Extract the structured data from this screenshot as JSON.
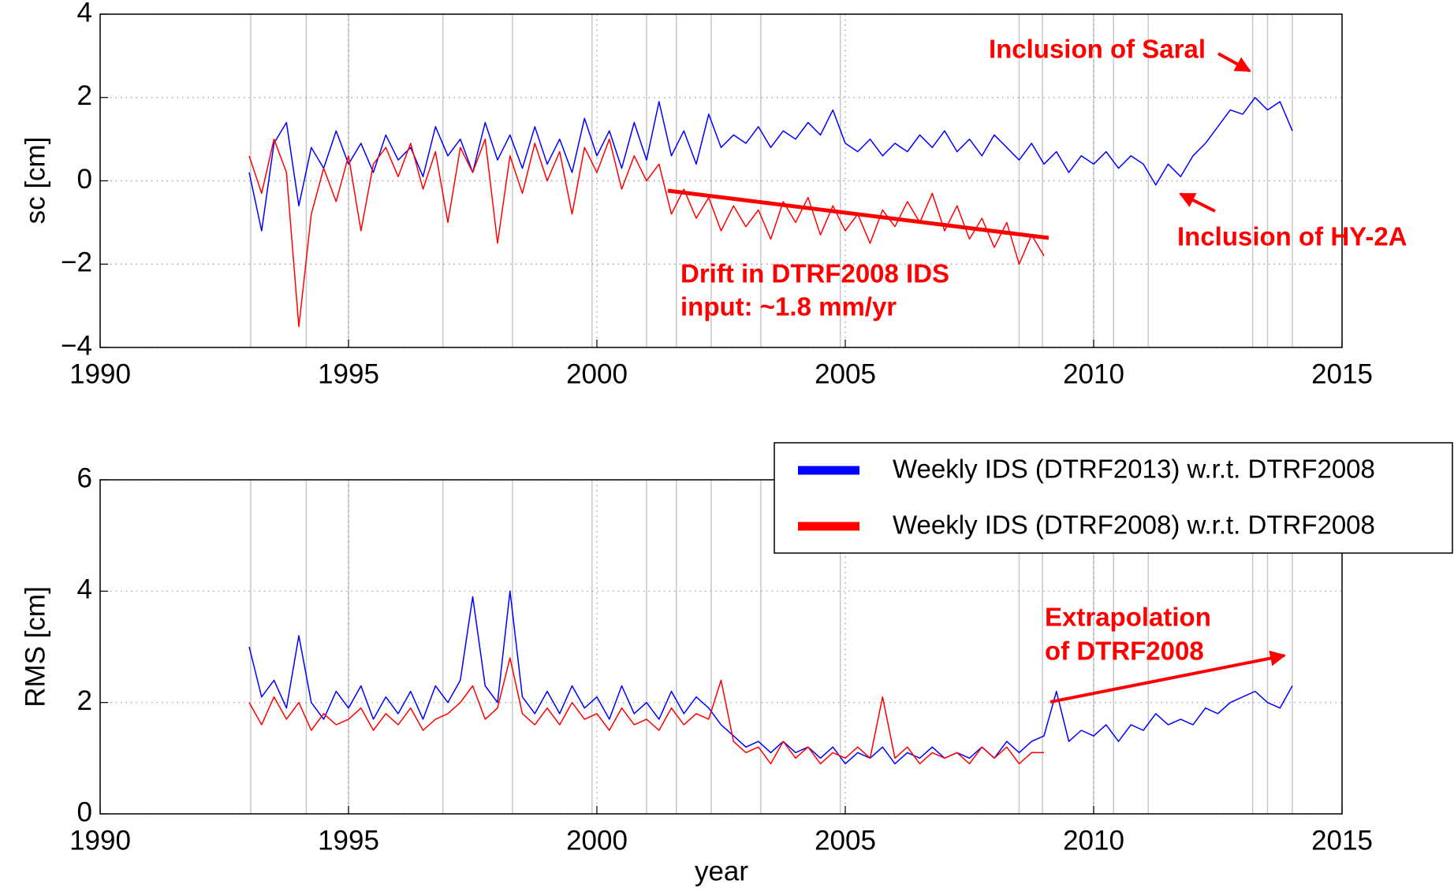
{
  "chart_data": [
    {
      "type": "line",
      "ylabel": "sc [cm]",
      "xlim": [
        1990,
        2015
      ],
      "xticks": [
        1990,
        1995,
        2000,
        2005,
        2010,
        2015
      ],
      "ylim": [
        -4,
        4
      ],
      "yticks": [
        {
          "value": -4,
          "label": "−4"
        },
        {
          "value": -2,
          "label": "−2"
        },
        0,
        2,
        4
      ],
      "grid": true,
      "event_lines": [
        1993.03,
        1994.15,
        1995.0,
        1996.9,
        1998.3,
        1999.9,
        2001.0,
        2001.6,
        2002.3,
        2003.3,
        2004.9,
        2008.5,
        2008.97,
        2010.0,
        2010.4,
        2011.1,
        2013.2,
        2013.5,
        2014.0
      ],
      "annotations": [
        "Inclusion of Saral",
        "Inclusion of HY-2A",
        "Drift in DTRF2008 IDS",
        "input: ~1.8 mm/yr"
      ],
      "x": [
        1993.0,
        1993.25,
        1993.5,
        1993.75,
        1994.0,
        1994.25,
        1994.5,
        1994.75,
        1995.0,
        1995.25,
        1995.5,
        1995.75,
        1996.0,
        1996.25,
        1996.5,
        1996.75,
        1997.0,
        1997.25,
        1997.5,
        1997.75,
        1998.0,
        1998.25,
        1998.5,
        1998.75,
        1999.0,
        1999.25,
        1999.5,
        1999.75,
        2000.0,
        2000.25,
        2000.5,
        2000.75,
        2001.0,
        2001.25,
        2001.5,
        2001.75,
        2002.0,
        2002.25,
        2002.5,
        2002.75,
        2003.0,
        2003.25,
        2003.5,
        2003.75,
        2004.0,
        2004.25,
        2004.5,
        2004.75,
        2005.0,
        2005.25,
        2005.5,
        2005.75,
        2006.0,
        2006.25,
        2006.5,
        2006.75,
        2007.0,
        2007.25,
        2007.5,
        2007.75,
        2008.0,
        2008.25,
        2008.5,
        2008.75,
        2009.0,
        2009.25,
        2009.5,
        2009.75,
        2010.0,
        2010.25,
        2010.5,
        2010.75,
        2011.0,
        2011.25,
        2011.5,
        2011.75,
        2012.0,
        2012.25,
        2012.5,
        2012.75,
        2013.0,
        2013.25,
        2013.5,
        2013.75,
        2014.0
      ],
      "series": [
        {
          "color": "#0000ff",
          "values": [
            0.2,
            -1.2,
            0.9,
            1.4,
            -0.6,
            0.8,
            0.3,
            1.2,
            0.4,
            0.9,
            0.2,
            1.1,
            0.5,
            0.8,
            0.1,
            1.3,
            0.6,
            1.0,
            0.2,
            1.4,
            0.5,
            1.1,
            0.3,
            1.3,
            0.4,
            1.0,
            0.2,
            1.5,
            0.6,
            1.2,
            0.3,
            1.4,
            0.5,
            1.9,
            0.6,
            1.2,
            0.4,
            1.6,
            0.8,
            1.1,
            0.9,
            1.3,
            0.8,
            1.2,
            1.0,
            1.4,
            1.1,
            1.7,
            0.9,
            0.7,
            1.0,
            0.6,
            0.9,
            0.7,
            1.1,
            0.8,
            1.2,
            0.7,
            1.0,
            0.6,
            1.1,
            0.8,
            0.5,
            0.9,
            0.4,
            0.7,
            0.2,
            0.6,
            0.4,
            0.7,
            0.3,
            0.6,
            0.4,
            -0.1,
            0.4,
            0.1,
            0.6,
            0.9,
            1.3,
            1.7,
            1.6,
            2.0,
            1.7,
            1.9,
            1.2
          ]
        },
        {
          "color": "#ff0000",
          "values": [
            0.6,
            -0.3,
            1.0,
            0.2,
            -3.5,
            -0.8,
            0.3,
            -0.5,
            0.6,
            -1.2,
            0.4,
            0.8,
            0.1,
            0.9,
            -0.2,
            0.7,
            -1.0,
            0.8,
            0.2,
            1.0,
            -1.5,
            0.6,
            -0.3,
            0.9,
            0.0,
            0.7,
            -0.8,
            0.8,
            0.2,
            1.0,
            -0.2,
            0.6,
            0.0,
            0.4,
            -0.8,
            -0.2,
            -0.9,
            -0.4,
            -1.2,
            -0.6,
            -1.1,
            -0.7,
            -1.4,
            -0.5,
            -1.0,
            -0.4,
            -1.3,
            -0.6,
            -1.2,
            -0.8,
            -1.5,
            -0.7,
            -1.1,
            -0.5,
            -1.0,
            -0.3,
            -1.2,
            -0.6,
            -1.4,
            -0.9,
            -1.6,
            -1.0,
            -2.0,
            -1.3,
            -1.8,
            null,
            null,
            null,
            null,
            null,
            null,
            null,
            null,
            null,
            null,
            null,
            null,
            null,
            null,
            null,
            null,
            null,
            null,
            null,
            null
          ]
        }
      ]
    },
    {
      "type": "line",
      "xlabel": "year",
      "ylabel": "RMS [cm]",
      "xlim": [
        1990,
        2015
      ],
      "xticks": [
        1990,
        1995,
        2000,
        2005,
        2010,
        2015
      ],
      "ylim": [
        0,
        6
      ],
      "yticks": [
        0,
        2,
        4,
        6
      ],
      "grid": true,
      "legend": "upper right",
      "annotations": [
        "Extrapolation",
        "of DTRF2008"
      ],
      "x": [
        1993.0,
        1993.25,
        1993.5,
        1993.75,
        1994.0,
        1994.25,
        1994.5,
        1994.75,
        1995.0,
        1995.25,
        1995.5,
        1995.75,
        1996.0,
        1996.25,
        1996.5,
        1996.75,
        1997.0,
        1997.25,
        1997.5,
        1997.75,
        1998.0,
        1998.25,
        1998.5,
        1998.75,
        1999.0,
        1999.25,
        1999.5,
        1999.75,
        2000.0,
        2000.25,
        2000.5,
        2000.75,
        2001.0,
        2001.25,
        2001.5,
        2001.75,
        2002.0,
        2002.25,
        2002.5,
        2002.75,
        2003.0,
        2003.25,
        2003.5,
        2003.75,
        2004.0,
        2004.25,
        2004.5,
        2004.75,
        2005.0,
        2005.25,
        2005.5,
        2005.75,
        2006.0,
        2006.25,
        2006.5,
        2006.75,
        2007.0,
        2007.25,
        2007.5,
        2007.75,
        2008.0,
        2008.25,
        2008.5,
        2008.75,
        2009.0,
        2009.25,
        2009.5,
        2009.75,
        2010.0,
        2010.25,
        2010.5,
        2010.75,
        2011.0,
        2011.25,
        2011.5,
        2011.75,
        2012.0,
        2012.25,
        2012.5,
        2012.75,
        2013.0,
        2013.25,
        2013.5,
        2013.75,
        2014.0
      ],
      "series": [
        {
          "name": "Weekly IDS (DTRF2013) w.r.t. DTRF2008",
          "color": "#0000ff",
          "values": [
            3.0,
            2.1,
            2.4,
            1.9,
            3.2,
            2.0,
            1.7,
            2.2,
            1.9,
            2.3,
            1.7,
            2.1,
            1.8,
            2.2,
            1.7,
            2.3,
            2.0,
            2.4,
            3.9,
            2.3,
            2.0,
            4.0,
            2.1,
            1.8,
            2.2,
            1.8,
            2.3,
            1.9,
            2.1,
            1.7,
            2.3,
            1.8,
            2.0,
            1.7,
            2.2,
            1.8,
            2.1,
            1.9,
            1.6,
            1.4,
            1.2,
            1.3,
            1.1,
            1.3,
            1.1,
            1.2,
            1.0,
            1.2,
            0.9,
            1.1,
            1.0,
            1.2,
            0.9,
            1.1,
            1.0,
            1.2,
            1.0,
            1.1,
            1.0,
            1.2,
            1.0,
            1.3,
            1.1,
            1.3,
            1.4,
            2.2,
            1.3,
            1.5,
            1.4,
            1.6,
            1.3,
            1.6,
            1.5,
            1.8,
            1.6,
            1.7,
            1.6,
            1.9,
            1.8,
            2.0,
            2.1,
            2.2,
            2.0,
            1.9,
            2.3
          ]
        },
        {
          "name": "Weekly IDS (DTRF2008) w.r.t. DTRF2008",
          "color": "#ff0000",
          "values": [
            2.0,
            1.6,
            2.1,
            1.7,
            2.0,
            1.5,
            1.8,
            1.6,
            1.7,
            1.9,
            1.5,
            1.8,
            1.6,
            1.9,
            1.5,
            1.7,
            1.8,
            2.0,
            2.3,
            1.7,
            1.9,
            2.8,
            1.8,
            1.6,
            1.9,
            1.6,
            2.0,
            1.7,
            1.8,
            1.5,
            1.9,
            1.6,
            1.7,
            1.5,
            1.9,
            1.6,
            1.8,
            1.7,
            2.4,
            1.3,
            1.1,
            1.2,
            0.9,
            1.3,
            1.0,
            1.2,
            0.9,
            1.1,
            1.0,
            1.2,
            1.0,
            2.1,
            1.0,
            1.2,
            0.9,
            1.1,
            1.0,
            1.1,
            0.9,
            1.2,
            1.0,
            1.2,
            0.9,
            1.1,
            1.1,
            null,
            null,
            null,
            null,
            null,
            null,
            null,
            null,
            null,
            null,
            null,
            null,
            null,
            null,
            null,
            null,
            null,
            null,
            null,
            null
          ]
        }
      ]
    }
  ]
}
